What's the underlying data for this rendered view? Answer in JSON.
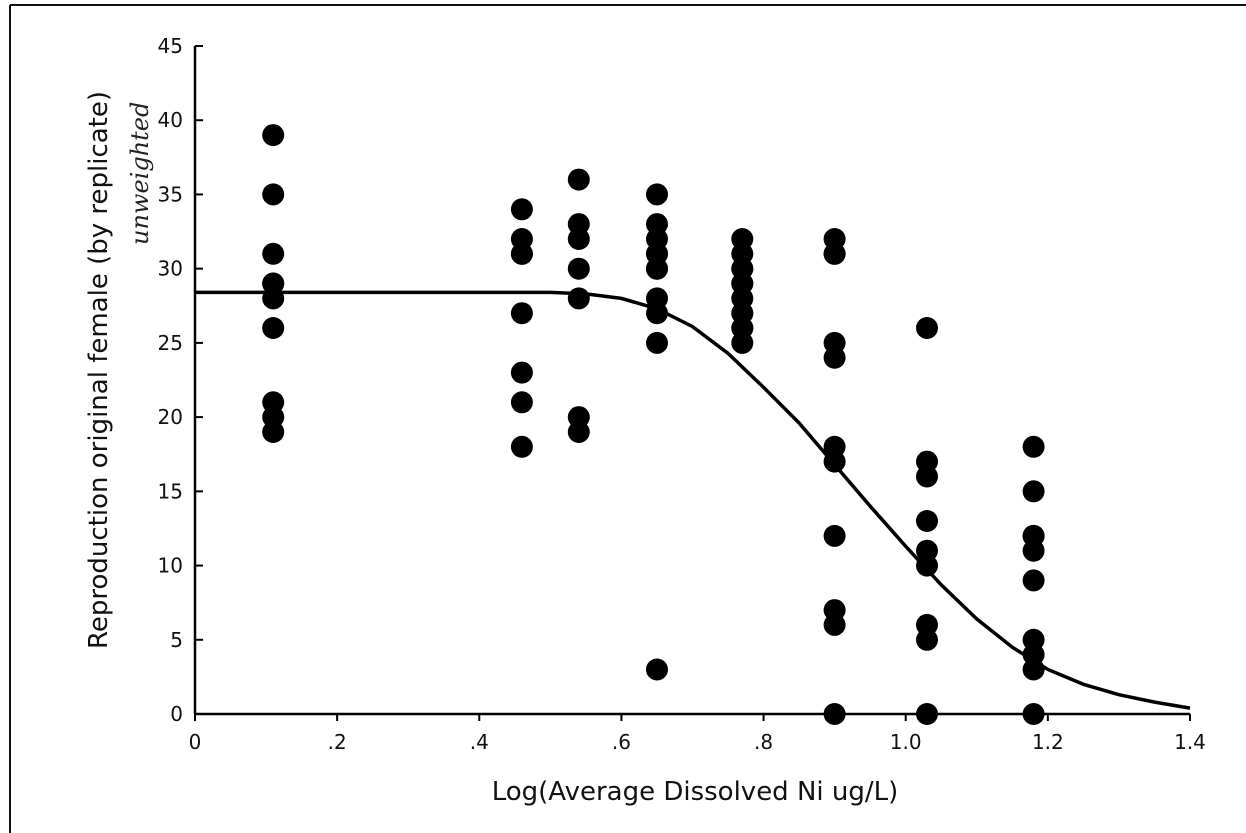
{
  "chart_data": {
    "type": "scatter",
    "title": "",
    "xlabel": "Log(Average Dissolved Ni ug/L)",
    "ylabel": "Reproduction original female (by replicate)",
    "annotation": "unweighted",
    "xlim": [
      0,
      1.4
    ],
    "ylim": [
      0,
      45
    ],
    "x_ticks": [
      0,
      0.2,
      0.4,
      0.6,
      0.8,
      1.0,
      1.2,
      1.4
    ],
    "x_tick_labels": [
      "0",
      ".2",
      ".4",
      ".6",
      ".8",
      "1.0",
      "1.2",
      "1.4"
    ],
    "y_ticks": [
      0,
      5,
      10,
      15,
      20,
      25,
      30,
      35,
      40,
      45
    ],
    "y_tick_labels": [
      "0",
      "5",
      "10",
      "15",
      "20",
      "25",
      "30",
      "35",
      "40",
      "45"
    ],
    "grid": false,
    "legend": "none",
    "series": [
      {
        "type": "scatter",
        "x": [
          0.11,
          0.11,
          0.11,
          0.11,
          0.11,
          0.11,
          0.11,
          0.11,
          0.11,
          0.11,
          0.46,
          0.46,
          0.46,
          0.46,
          0.46,
          0.46,
          0.46,
          0.46,
          0.54,
          0.54,
          0.54,
          0.54,
          0.54,
          0.54,
          0.54,
          0.65,
          0.65,
          0.65,
          0.65,
          0.65,
          0.65,
          0.65,
          0.65,
          0.65,
          0.65,
          0.65,
          0.77,
          0.77,
          0.77,
          0.77,
          0.77,
          0.77,
          0.77,
          0.77,
          0.77,
          0.77,
          0.77,
          0.77,
          0.9,
          0.9,
          0.9,
          0.9,
          0.9,
          0.9,
          0.9,
          0.9,
          0.9,
          0.9,
          0.9,
          1.03,
          1.03,
          1.03,
          1.03,
          1.03,
          1.03,
          1.03,
          1.03,
          1.03,
          1.18,
          1.18,
          1.18,
          1.18,
          1.18,
          1.18,
          1.18,
          1.18,
          1.18,
          1.18
        ],
        "y": [
          39,
          35,
          31,
          29,
          28,
          26,
          21,
          20,
          19,
          29,
          34,
          32,
          31,
          27,
          23,
          21,
          18,
          31,
          36,
          33,
          32,
          30,
          28,
          20,
          19,
          35,
          33,
          32,
          31,
          30,
          28,
          27,
          25,
          3,
          31,
          30,
          32,
          31,
          30,
          29,
          28,
          27,
          26,
          25,
          29,
          30,
          27,
          26,
          32,
          31,
          25,
          24,
          18,
          17,
          12,
          7,
          6,
          0,
          31,
          26,
          17,
          16,
          13,
          11,
          10,
          6,
          5,
          0,
          18,
          15,
          12,
          11,
          9,
          5,
          4,
          3,
          0,
          12
        ]
      },
      {
        "type": "line",
        "name": "",
        "x": [
          0,
          0.1,
          0.2,
          0.3,
          0.4,
          0.5,
          0.55,
          0.6,
          0.65,
          0.7,
          0.75,
          0.8,
          0.85,
          0.9,
          0.95,
          1.0,
          1.05,
          1.1,
          1.15,
          1.2,
          1.25,
          1.3,
          1.35,
          1.4
        ],
        "y": [
          28.4,
          28.4,
          28.4,
          28.4,
          28.4,
          28.4,
          28.3,
          28.0,
          27.3,
          26.1,
          24.3,
          22.0,
          19.6,
          16.8,
          14.0,
          11.3,
          8.7,
          6.4,
          4.5,
          3.0,
          2.0,
          1.3,
          0.8,
          0.4
        ]
      }
    ]
  }
}
